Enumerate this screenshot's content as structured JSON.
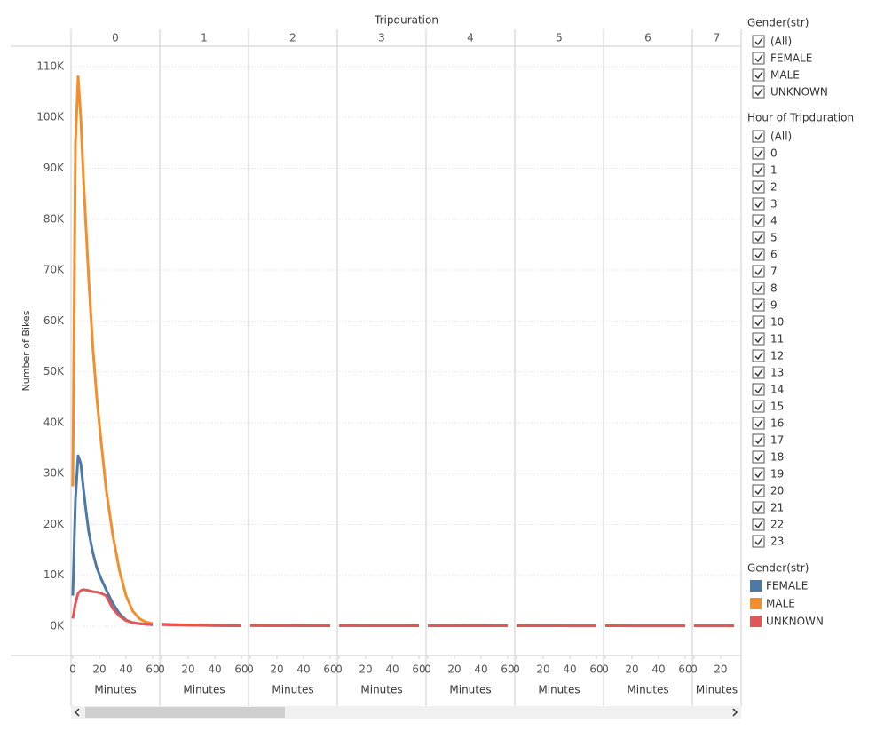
{
  "chart_data": {
    "type": "line",
    "title": "Tripduration",
    "ylabel": "Number of Bikes",
    "ylim": [
      -5760,
      114000
    ],
    "yticks": [
      {
        "value": 0,
        "label": "0K"
      },
      {
        "value": 10000,
        "label": "10K"
      },
      {
        "value": 20000,
        "label": "20K"
      },
      {
        "value": 30000,
        "label": "30K"
      },
      {
        "value": 40000,
        "label": "40K"
      },
      {
        "value": 50000,
        "label": "50K"
      },
      {
        "value": 60000,
        "label": "60K"
      },
      {
        "value": 70000,
        "label": "70K"
      },
      {
        "value": 80000,
        "label": "80K"
      },
      {
        "value": 90000,
        "label": "90K"
      },
      {
        "value": 100000,
        "label": "100K"
      },
      {
        "value": 110000,
        "label": "110K"
      }
    ],
    "grid": true,
    "legend": {
      "title": "Gender(str)",
      "items": [
        {
          "name": "FEMALE",
          "color": "#4e79a7"
        },
        {
          "name": "MALE",
          "color": "#f28e2b"
        },
        {
          "name": "UNKNOWN",
          "color": "#e15759"
        }
      ]
    },
    "panels": [
      {
        "title": "0",
        "xlabel": "Minutes",
        "xlim": [
          -1.3,
          65.3
        ],
        "xticks": [
          0,
          20,
          40,
          60
        ],
        "x": [
          0,
          2,
          4,
          6,
          8,
          10,
          12,
          15,
          18,
          21,
          25,
          30,
          35,
          40,
          45,
          50,
          55,
          60
        ],
        "series": [
          {
            "values": [
              6000,
              25000,
              33500,
              32000,
              27000,
              22500,
              18500,
              14500,
              11500,
              9500,
              7200,
              4500,
              2500,
              1200,
              700,
              500,
              400,
              300
            ]
          },
          {
            "values": [
              27500,
              95000,
              108000,
              100000,
              88000,
              78000,
              68000,
              55000,
              45000,
              37000,
              27000,
              18000,
              11000,
              6000,
              3000,
              1500,
              800,
              500
            ]
          },
          {
            "values": [
              1500,
              4500,
              6500,
              7000,
              7200,
              7100,
              7000,
              6800,
              6700,
              6500,
              6000,
              3500,
              2000,
              1100,
              700,
              500,
              400,
              300
            ]
          }
        ]
      },
      {
        "title": "1",
        "xlabel": "Minutes",
        "xlim": [
          -1.3,
          65.3
        ],
        "xticks": [
          0,
          20,
          40,
          60
        ],
        "x": [
          0,
          10,
          20,
          30,
          40,
          50,
          60
        ],
        "series": [
          {
            "values": [
              400,
              300,
              250,
              200,
              150,
              120,
              100
            ]
          },
          {
            "values": [
              450,
              320,
              260,
              210,
              160,
              130,
              110
            ]
          },
          {
            "values": [
              300,
              250,
              200,
              150,
              120,
              100,
              90
            ]
          }
        ]
      },
      {
        "title": "2",
        "xlabel": "Minutes",
        "xlim": [
          -1.3,
          65.3
        ],
        "xticks": [
          0,
          20,
          40,
          60
        ],
        "x": [
          0,
          10,
          20,
          30,
          40,
          50,
          60
        ],
        "series": [
          {
            "values": [
              150,
              140,
              130,
              120,
              110,
              100,
              100
            ]
          },
          {
            "values": [
              160,
              150,
              140,
              130,
              120,
              110,
              100
            ]
          },
          {
            "values": [
              120,
              110,
              100,
              100,
              90,
              90,
              90
            ]
          }
        ]
      },
      {
        "title": "3",
        "xlabel": "Minutes",
        "xlim": [
          -1.3,
          65.3
        ],
        "xticks": [
          0,
          20,
          40,
          60
        ],
        "x": [
          0,
          10,
          20,
          30,
          40,
          50,
          60
        ],
        "series": [
          {
            "values": [
              120,
              110,
              110,
              100,
              100,
              100,
              90
            ]
          },
          {
            "values": [
              130,
              120,
              110,
              110,
              100,
              100,
              100
            ]
          },
          {
            "values": [
              100,
              100,
              90,
              90,
              90,
              80,
              80
            ]
          }
        ]
      },
      {
        "title": "4",
        "xlabel": "Minutes",
        "xlim": [
          -1.3,
          65.3
        ],
        "xticks": [
          0,
          20,
          40,
          60
        ],
        "x": [
          0,
          10,
          20,
          30,
          40,
          50,
          60
        ],
        "series": [
          {
            "values": [
              100,
              100,
              100,
              90,
              90,
              90,
              90
            ]
          },
          {
            "values": [
              110,
              110,
              100,
              100,
              100,
              90,
              90
            ]
          },
          {
            "values": [
              90,
              90,
              80,
              80,
              80,
              80,
              80
            ]
          }
        ]
      },
      {
        "title": "5",
        "xlabel": "Minutes",
        "xlim": [
          -1.3,
          65.3
        ],
        "xticks": [
          0,
          20,
          40,
          60
        ],
        "x": [
          0,
          10,
          20,
          30,
          40,
          50,
          60
        ],
        "series": [
          {
            "values": [
              100,
              90,
              90,
              90,
              90,
              80,
              80
            ]
          },
          {
            "values": [
              100,
              100,
              90,
              90,
              90,
              90,
              80
            ]
          },
          {
            "values": [
              80,
              80,
              80,
              80,
              70,
              70,
              70
            ]
          }
        ]
      },
      {
        "title": "6",
        "xlabel": "Minutes",
        "xlim": [
          -1.3,
          65.3
        ],
        "xticks": [
          0,
          20,
          40,
          60
        ],
        "x": [
          0,
          10,
          20,
          30,
          40,
          50,
          60
        ],
        "series": [
          {
            "values": [
              90,
              90,
              90,
              80,
              80,
              80,
              80
            ]
          },
          {
            "values": [
              100,
              90,
              90,
              90,
              80,
              80,
              80
            ]
          },
          {
            "values": [
              80,
              80,
              70,
              70,
              70,
              70,
              70
            ]
          }
        ]
      },
      {
        "title": "7",
        "xlabel": "Minutes",
        "xlim": [
          -1.3,
          35.4
        ],
        "xticks": [
          0,
          20
        ],
        "x": [
          0,
          10,
          20,
          30
        ],
        "series": [
          {
            "values": [
              90,
              80,
              80,
              80
            ]
          },
          {
            "values": [
              90,
              90,
              80,
              80
            ]
          },
          {
            "values": [
              70,
              70,
              70,
              70
            ]
          }
        ]
      }
    ]
  },
  "filters": [
    {
      "title": "Gender(str)",
      "options": [
        "(All)",
        "FEMALE",
        "MALE",
        "UNKNOWN"
      ]
    },
    {
      "title": "Hour of Tripduration",
      "options": [
        "(All)",
        "0",
        "1",
        "2",
        "3",
        "4",
        "5",
        "6",
        "7",
        "8",
        "9",
        "10",
        "11",
        "12",
        "13",
        "14",
        "15",
        "16",
        "17",
        "18",
        "19",
        "20",
        "21",
        "22",
        "23"
      ]
    }
  ]
}
